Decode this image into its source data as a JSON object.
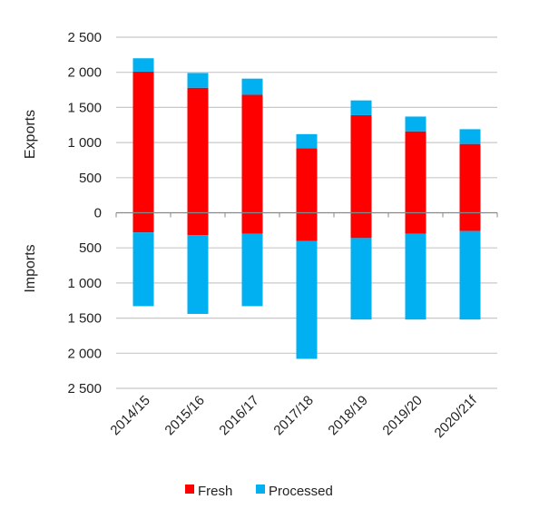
{
  "chart_data": {
    "type": "bar",
    "stacked": true,
    "diverging": true,
    "categories": [
      "2014/15",
      "2015/16",
      "2016/17",
      "2017/18",
      "2018/19",
      "2019/20",
      "2020/21f"
    ],
    "exports": {
      "label": "Exports",
      "series": [
        {
          "name": "Fresh",
          "values": [
            2010,
            1780,
            1680,
            920,
            1390,
            1160,
            980
          ]
        },
        {
          "name": "Processed",
          "values": [
            190,
            210,
            230,
            200,
            210,
            210,
            210
          ]
        }
      ]
    },
    "imports": {
      "label": "Imports",
      "series": [
        {
          "name": "Fresh",
          "values": [
            280,
            320,
            300,
            400,
            360,
            300,
            260
          ]
        },
        {
          "name": "Processed",
          "values": [
            1050,
            1120,
            1030,
            1680,
            1160,
            1220,
            1260
          ]
        }
      ]
    },
    "ylim": [
      -2500,
      2500
    ],
    "y_ticks": [
      2500,
      2000,
      1500,
      1000,
      500,
      0,
      -500,
      -1000,
      -1500,
      -2000,
      -2500
    ],
    "y_tick_labels": [
      "2 500",
      "2 000",
      "1 500",
      "1 000",
      "500",
      "0",
      "500",
      "1 000",
      "1 500",
      "2 000",
      "2 500"
    ],
    "grid": true,
    "legend": {
      "position": "bottom",
      "items": [
        "Fresh",
        "Processed"
      ]
    },
    "colors": {
      "Fresh": "#ff0000",
      "Processed": "#00b0f0"
    }
  }
}
